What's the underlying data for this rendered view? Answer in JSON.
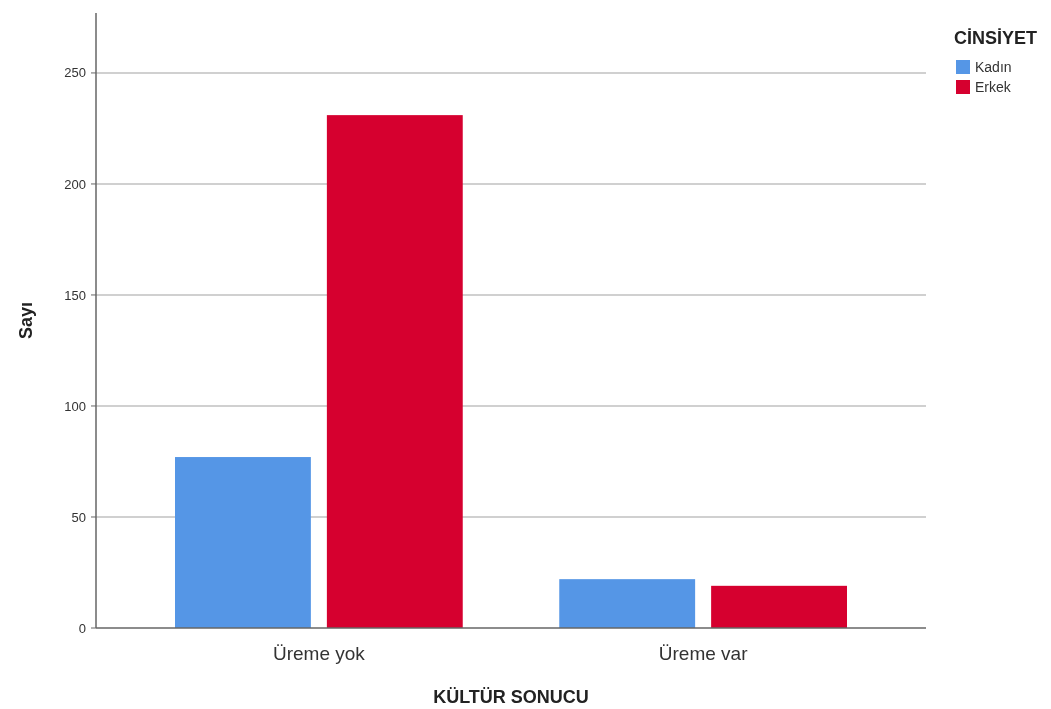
{
  "chart_data": {
    "type": "bar",
    "xlabel": "KÜLTÜR SONUCU",
    "ylabel": "Sayı",
    "legend_title": "CİNSİYET",
    "categories": [
      "Üreme yok",
      "Üreme var"
    ],
    "series": [
      {
        "name": "Kadın",
        "color": "#5596e6",
        "values": [
          77,
          22
        ]
      },
      {
        "name": "Erkek",
        "color": "#d6002f",
        "values": [
          231,
          19
        ]
      }
    ],
    "ylim": [
      0,
      277
    ],
    "yticks": [
      0,
      50,
      100,
      150,
      200,
      250
    ],
    "grid": "y",
    "legend": "top right"
  }
}
